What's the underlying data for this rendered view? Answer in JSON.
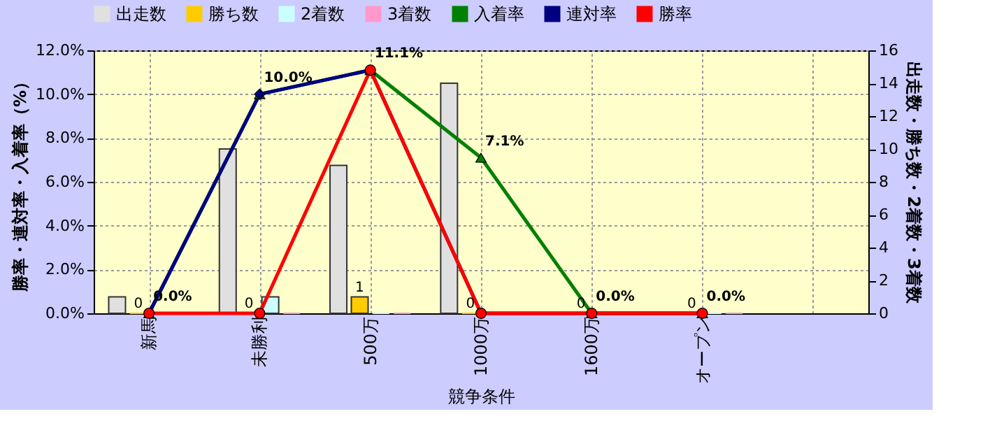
{
  "chart_data": {
    "type": "bar",
    "xlabel": "競争条件",
    "ylabel": "勝率・連対率・入着率（%）",
    "y2label": "出走数・勝ち数・2着数・3着数",
    "categories": [
      "新馬",
      "未勝利",
      "500万",
      "1000万",
      "1600万",
      "オープン",
      null
    ],
    "ylim": [
      0,
      12
    ],
    "yticks": [
      {
        "value": 0,
        "label": "0.0%"
      },
      {
        "value": 2,
        "label": "2.0%"
      },
      {
        "value": 4,
        "label": "4.0%"
      },
      {
        "value": 6,
        "label": "6.0%"
      },
      {
        "value": 8,
        "label": "8.0%"
      },
      {
        "value": 10,
        "label": "10.0%"
      },
      {
        "value": 12,
        "label": "12.0%"
      }
    ],
    "y2lim": [
      0,
      16
    ],
    "y2ticks": [
      0,
      2,
      4,
      6,
      8,
      10,
      12,
      14,
      16
    ],
    "grid": true,
    "legend": "top",
    "line_style": "solid",
    "series": [
      {
        "name": "出走数",
        "axis": "y2",
        "color": "#e0e0e0",
        "values": [
          1,
          10,
          9,
          14,
          0,
          0,
          null
        ]
      },
      {
        "name": "勝ち数",
        "axis": "y2",
        "color": "#ffcc00",
        "values": [
          0,
          0,
          1,
          0,
          0,
          0,
          null
        ],
        "value_labels": [
          "0",
          "0",
          "1",
          "0",
          "0",
          "0",
          null
        ]
      },
      {
        "name": "2着数",
        "axis": "y2",
        "color": "#ccffff",
        "values": [
          0,
          1,
          0,
          0,
          0,
          0,
          null
        ]
      },
      {
        "name": "3着数",
        "axis": "y2",
        "color": "#ff99cc",
        "values": [
          0,
          0,
          0,
          0,
          0,
          0,
          null
        ]
      },
      {
        "name": "入着率",
        "type": "line",
        "color": "#008000",
        "marker": "triangle",
        "values": [
          0,
          10,
          11.1,
          7.1,
          0,
          0,
          null
        ],
        "value_labels": [
          "0.0%",
          "10.0%",
          "11.1%",
          "7.1%",
          "0.0%",
          "0.0%",
          null
        ]
      },
      {
        "name": "連対率",
        "type": "line",
        "color": "#000080",
        "marker": "diamond",
        "values": [
          0,
          10,
          11.1,
          0,
          0,
          0,
          null
        ]
      },
      {
        "name": "勝率",
        "type": "line",
        "color": "#ff0000",
        "marker": "circle",
        "values": [
          0,
          0,
          11.1,
          0,
          0,
          0,
          null
        ]
      }
    ]
  }
}
